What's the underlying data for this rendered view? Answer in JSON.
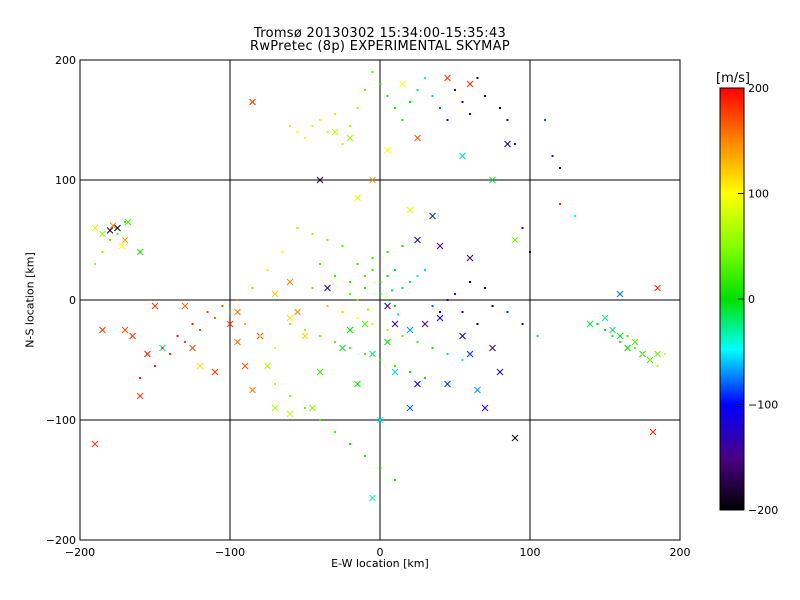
{
  "chart_data": {
    "type": "scatter",
    "title": "Tromsø 20130302 15:34:00-15:35:43",
    "subtitle": "RwPretec (8p) EXPERIMENTAL SKYMAP",
    "xlabel": "E-W location [km]",
    "ylabel": "N-S location [km]",
    "xlim": [
      -200,
      200
    ],
    "ylim": [
      -200,
      200
    ],
    "xticks": [
      "-200",
      "-100",
      "0",
      "100",
      "200"
    ],
    "yticks": [
      "-200",
      "-100",
      "0",
      "100",
      "200"
    ],
    "grid": true,
    "colorbar": {
      "label": "[m/s]",
      "range": [
        -200,
        200
      ],
      "ticks": [
        "200",
        "100",
        "0",
        "-100",
        "-200"
      ],
      "colormap": "rainbow-black-to-red"
    },
    "series": [
      {
        "marker": "x",
        "points": [
          [
            -190,
            60,
            80
          ],
          [
            -185,
            55,
            60
          ],
          [
            -180,
            58,
            -180
          ],
          [
            -178,
            62,
            150
          ],
          [
            -175,
            60,
            -200
          ],
          [
            -172,
            45,
            100
          ],
          [
            -170,
            50,
            140
          ],
          [
            -168,
            65,
            30
          ],
          [
            -160,
            40,
            10
          ],
          [
            -150,
            -5,
            180
          ],
          [
            -145,
            -40,
            -30
          ],
          [
            -160,
            -80,
            180
          ],
          [
            -185,
            -25,
            180
          ],
          [
            -170,
            -25,
            170
          ],
          [
            -165,
            -30,
            180
          ],
          [
            -155,
            -45,
            190
          ],
          [
            -190,
            -120,
            180
          ],
          [
            -130,
            -5,
            160
          ],
          [
            -125,
            -40,
            170
          ],
          [
            -120,
            -55,
            110
          ],
          [
            -110,
            -60,
            180
          ],
          [
            -100,
            -20,
            180
          ],
          [
            -95,
            -35,
            160
          ],
          [
            -90,
            -55,
            170
          ],
          [
            -85,
            -75,
            150
          ],
          [
            -70,
            -90,
            60
          ],
          [
            -60,
            -95,
            80
          ],
          [
            -75,
            -55,
            70
          ],
          [
            -80,
            -30,
            180
          ],
          [
            -55,
            -10,
            150
          ],
          [
            -50,
            -30,
            120
          ],
          [
            -40,
            -60,
            20
          ],
          [
            -35,
            10,
            -120
          ],
          [
            -60,
            15,
            150
          ],
          [
            -85,
            165,
            180
          ],
          [
            -30,
            140,
            70
          ],
          [
            -20,
            135,
            60
          ],
          [
            -40,
            100,
            -180
          ],
          [
            -15,
            85,
            90
          ],
          [
            -5,
            100,
            140
          ],
          [
            5,
            125,
            100
          ],
          [
            15,
            180,
            100
          ],
          [
            25,
            135,
            170
          ],
          [
            45,
            185,
            180
          ],
          [
            60,
            180,
            185
          ],
          [
            55,
            120,
            -60
          ],
          [
            75,
            100,
            -10
          ],
          [
            85,
            130,
            -120
          ],
          [
            20,
            75,
            90
          ],
          [
            35,
            70,
            -90
          ],
          [
            25,
            50,
            -130
          ],
          [
            40,
            45,
            -150
          ],
          [
            60,
            35,
            -160
          ],
          [
            90,
            50,
            40
          ],
          [
            5,
            -5,
            -140
          ],
          [
            10,
            -20,
            -130
          ],
          [
            20,
            -25,
            -70
          ],
          [
            30,
            -20,
            -150
          ],
          [
            40,
            -15,
            -100
          ],
          [
            55,
            -30,
            -120
          ],
          [
            60,
            -45,
            -90
          ],
          [
            75,
            -40,
            -150
          ],
          [
            80,
            -60,
            -110
          ],
          [
            65,
            -75,
            -70
          ],
          [
            45,
            -70,
            -90
          ],
          [
            25,
            -70,
            -100
          ],
          [
            10,
            -60,
            -60
          ],
          [
            0,
            -100,
            -50
          ],
          [
            20,
            -90,
            -80
          ],
          [
            70,
            -90,
            -130
          ],
          [
            90,
            -115,
            -190
          ],
          [
            -10,
            -20,
            30
          ],
          [
            -20,
            -25,
            0
          ],
          [
            -5,
            -45,
            -20
          ],
          [
            5,
            -35,
            0
          ],
          [
            -15,
            -70,
            10
          ],
          [
            -25,
            -40,
            -10
          ],
          [
            -45,
            -90,
            50
          ],
          [
            -5,
            -165,
            -40
          ],
          [
            140,
            -20,
            -10
          ],
          [
            150,
            -15,
            -30
          ],
          [
            155,
            -25,
            -20
          ],
          [
            160,
            -30,
            -10
          ],
          [
            165,
            -40,
            0
          ],
          [
            170,
            -35,
            30
          ],
          [
            175,
            -45,
            10
          ],
          [
            180,
            -50,
            20
          ],
          [
            185,
            -45,
            40
          ],
          [
            160,
            5,
            -80
          ],
          [
            185,
            10,
            180
          ],
          [
            182,
            -110,
            190
          ],
          [
            -95,
            -10,
            150
          ],
          [
            -70,
            5,
            120
          ],
          [
            -60,
            -15,
            110
          ]
        ]
      },
      {
        "marker": "dot",
        "points": [
          [
            -60,
            145,
            110
          ],
          [
            -55,
            140,
            100
          ],
          [
            -50,
            135,
            95
          ],
          [
            -45,
            145,
            90
          ],
          [
            -40,
            150,
            85
          ],
          [
            -35,
            140,
            80
          ],
          [
            -30,
            155,
            75
          ],
          [
            -25,
            130,
            70
          ],
          [
            -20,
            145,
            65
          ],
          [
            -15,
            160,
            60
          ],
          [
            -10,
            175,
            40
          ],
          [
            -5,
            190,
            30
          ],
          [
            0,
            180,
            20
          ],
          [
            5,
            170,
            15
          ],
          [
            10,
            160,
            10
          ],
          [
            15,
            150,
            5
          ],
          [
            20,
            165,
            0
          ],
          [
            25,
            175,
            -20
          ],
          [
            30,
            185,
            -40
          ],
          [
            35,
            170,
            -60
          ],
          [
            40,
            160,
            -80
          ],
          [
            45,
            150,
            -100
          ],
          [
            50,
            175,
            -120
          ],
          [
            55,
            165,
            -140
          ],
          [
            60,
            155,
            -160
          ],
          [
            65,
            185,
            -180
          ],
          [
            70,
            170,
            -190
          ],
          [
            80,
            160,
            -200
          ],
          [
            85,
            150,
            -170
          ],
          [
            90,
            130,
            -130
          ],
          [
            -40,
            30,
            30
          ],
          [
            -30,
            20,
            20
          ],
          [
            -20,
            15,
            15
          ],
          [
            -10,
            10,
            10
          ],
          [
            0,
            5,
            5
          ],
          [
            5,
            0,
            0
          ],
          [
            10,
            -5,
            -5
          ],
          [
            15,
            10,
            -10
          ],
          [
            20,
            15,
            -20
          ],
          [
            25,
            20,
            -40
          ],
          [
            30,
            25,
            -60
          ],
          [
            35,
            -5,
            -80
          ],
          [
            40,
            -10,
            -100
          ],
          [
            45,
            0,
            -120
          ],
          [
            50,
            5,
            -140
          ],
          [
            55,
            -10,
            -160
          ],
          [
            60,
            15,
            -180
          ],
          [
            65,
            -20,
            -200
          ],
          [
            70,
            10,
            -190
          ],
          [
            75,
            -5,
            -170
          ],
          [
            -60,
            -20,
            60
          ],
          [
            -50,
            -25,
            50
          ],
          [
            -40,
            -30,
            40
          ],
          [
            -30,
            -35,
            35
          ],
          [
            -20,
            -40,
            30
          ],
          [
            -10,
            -45,
            25
          ],
          [
            0,
            -50,
            20
          ],
          [
            10,
            -55,
            15
          ],
          [
            20,
            -60,
            10
          ],
          [
            30,
            -65,
            5
          ],
          [
            -70,
            -40,
            80
          ],
          [
            -80,
            -30,
            110
          ],
          [
            -90,
            -20,
            130
          ],
          [
            -100,
            -10,
            150
          ],
          [
            -110,
            -15,
            160
          ],
          [
            -120,
            -25,
            170
          ],
          [
            -130,
            -35,
            175
          ],
          [
            -140,
            -45,
            180
          ],
          [
            -150,
            -55,
            185
          ],
          [
            -160,
            -65,
            190
          ],
          [
            -70,
            -70,
            60
          ],
          [
            -60,
            -80,
            50
          ],
          [
            -50,
            -90,
            40
          ],
          [
            -40,
            -100,
            30
          ],
          [
            -30,
            -110,
            20
          ],
          [
            -20,
            -120,
            15
          ],
          [
            -10,
            -130,
            10
          ],
          [
            0,
            -140,
            5
          ],
          [
            10,
            -150,
            0
          ],
          [
            -15,
            30,
            25
          ],
          [
            -5,
            35,
            20
          ],
          [
            5,
            40,
            15
          ],
          [
            15,
            45,
            10
          ],
          [
            -25,
            45,
            35
          ],
          [
            -35,
            50,
            45
          ],
          [
            -45,
            55,
            55
          ],
          [
            -55,
            60,
            65
          ],
          [
            -65,
            40,
            95
          ],
          [
            -75,
            25,
            110
          ],
          [
            -85,
            10,
            130
          ],
          [
            -95,
            0,
            150
          ],
          [
            -105,
            -5,
            165
          ],
          [
            -115,
            -10,
            175
          ],
          [
            -125,
            -20,
            185
          ],
          [
            -135,
            -30,
            190
          ],
          [
            -145,
            -40,
            195
          ],
          [
            145,
            -20,
            0
          ],
          [
            150,
            -25,
            -10
          ],
          [
            155,
            -30,
            10
          ],
          [
            160,
            -35,
            20
          ],
          [
            165,
            -30,
            30
          ],
          [
            170,
            -40,
            40
          ],
          [
            175,
            -45,
            50
          ],
          [
            180,
            -50,
            60
          ],
          [
            185,
            -55,
            70
          ],
          [
            190,
            -45,
            80
          ],
          [
            -190,
            30,
            50
          ],
          [
            -185,
            40,
            60
          ],
          [
            -180,
            50,
            40
          ],
          [
            -175,
            55,
            30
          ],
          [
            -170,
            65,
            20
          ],
          [
            120,
            80,
            180
          ],
          [
            130,
            70,
            -50
          ],
          [
            110,
            150,
            -80
          ],
          [
            115,
            120,
            -150
          ],
          [
            120,
            110,
            -190
          ],
          [
            95,
            60,
            -140
          ],
          [
            100,
            40,
            -170
          ],
          [
            85,
            -10,
            -90
          ],
          [
            95,
            -20,
            -120
          ],
          [
            105,
            -30,
            -60
          ],
          [
            -45,
            10,
            140
          ],
          [
            -35,
            -5,
            130
          ],
          [
            -25,
            -10,
            120
          ],
          [
            -15,
            -15,
            100
          ],
          [
            -5,
            -20,
            80
          ],
          [
            5,
            -25,
            60
          ],
          [
            15,
            -30,
            40
          ],
          [
            25,
            -35,
            20
          ],
          [
            35,
            -40,
            0
          ],
          [
            45,
            -45,
            -20
          ],
          [
            55,
            -50,
            -40
          ],
          [
            -10,
            20,
            30
          ],
          [
            -5,
            25,
            20
          ],
          [
            0,
            15,
            10
          ],
          [
            5,
            20,
            0
          ],
          [
            10,
            25,
            -10
          ],
          [
            -20,
            5,
            40
          ],
          [
            -15,
            0,
            50
          ],
          [
            -8,
            -8,
            60
          ],
          [
            8,
            8,
            -20
          ],
          [
            12,
            -12,
            -30
          ]
        ]
      }
    ]
  }
}
